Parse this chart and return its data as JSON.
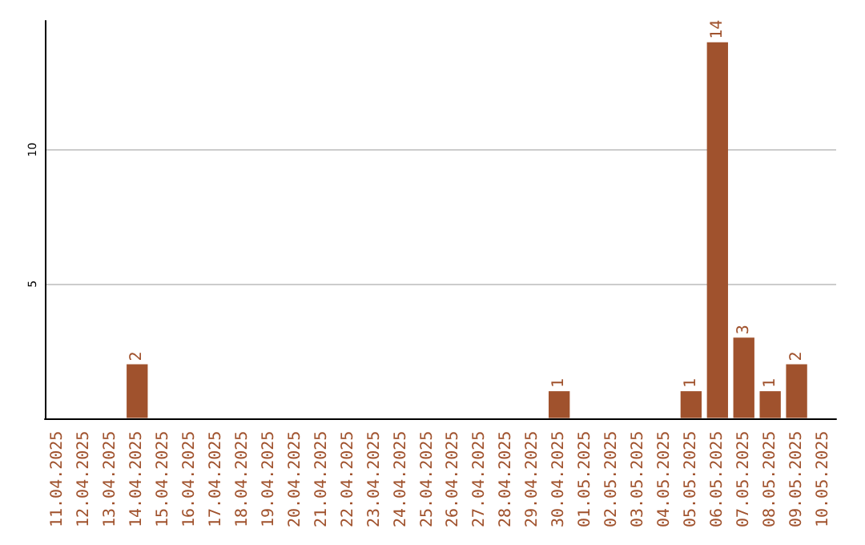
{
  "chart_data": {
    "type": "bar",
    "categories": [
      "11.04.2025",
      "12.04.2025",
      "13.04.2025",
      "14.04.2025",
      "15.04.2025",
      "16.04.2025",
      "17.04.2025",
      "18.04.2025",
      "19.04.2025",
      "20.04.2025",
      "21.04.2025",
      "22.04.2025",
      "23.04.2025",
      "24.04.2025",
      "25.04.2025",
      "26.04.2025",
      "27.04.2025",
      "28.04.2025",
      "29.04.2025",
      "30.04.2025",
      "01.05.2025",
      "02.05.2025",
      "03.05.2025",
      "04.05.2025",
      "05.05.2025",
      "06.05.2025",
      "07.05.2025",
      "08.05.2025",
      "09.05.2025",
      "10.05.2025"
    ],
    "values": [
      0,
      0,
      0,
      2,
      0,
      0,
      0,
      0,
      0,
      0,
      0,
      0,
      0,
      0,
      0,
      0,
      0,
      0,
      0,
      1,
      0,
      0,
      0,
      0,
      1,
      14,
      3,
      1,
      2,
      0
    ],
    "value_labels": [
      null,
      null,
      null,
      "2",
      null,
      null,
      null,
      null,
      null,
      null,
      null,
      null,
      null,
      null,
      null,
      null,
      null,
      null,
      null,
      "1",
      null,
      null,
      null,
      null,
      "1",
      "14",
      "3",
      "1",
      "2",
      null
    ],
    "color": "#a0522d",
    "ylim": [
      0,
      14.8
    ],
    "yticks": [
      5,
      10
    ],
    "grid": "y"
  }
}
